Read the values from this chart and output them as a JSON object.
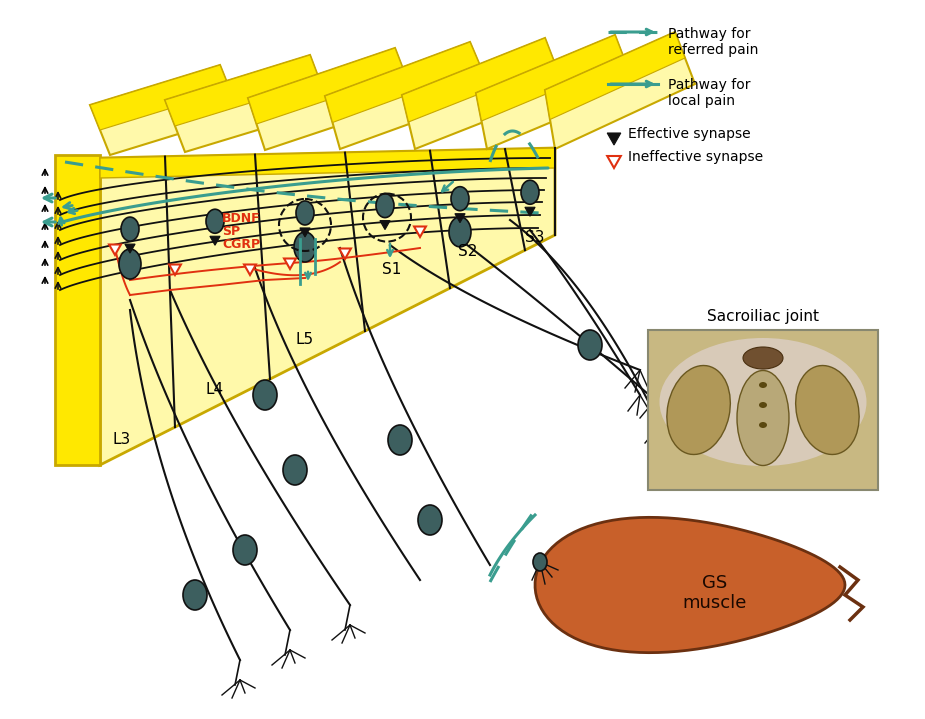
{
  "bg_color": "#ffffff",
  "teal": "#3a9d8f",
  "yellow_bright": "#ffe800",
  "yellow_light": "#fff9aa",
  "yellow_mid": "#ffec40",
  "outline_color": "#c8a800",
  "neuron_color": "#3d5f5f",
  "red_color": "#e03010",
  "orange_muscle": "#c8602a",
  "black": "#111111",
  "bdnf_text": "BDNF",
  "sp_text": "SP",
  "cgrp_text": "CGRP",
  "gs_muscle_text": "GS\nmuscle",
  "sacroiliac_text": "Sacroiliac joint"
}
